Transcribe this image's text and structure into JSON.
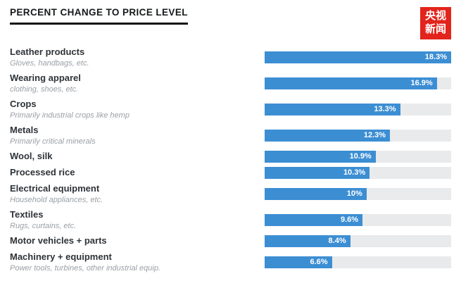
{
  "header": {
    "title": "PERCENT CHANGE TO PRICE LEVEL"
  },
  "logo": {
    "line1": "央视",
    "line2": "新闻",
    "bg_color": "#e2241c",
    "text_color": "#ffffff"
  },
  "chart_data": {
    "type": "bar",
    "orientation": "horizontal",
    "title": "PERCENT CHANGE TO PRICE LEVEL",
    "xlabel": "",
    "ylabel": "",
    "xlim": [
      0,
      18.3
    ],
    "grid": false,
    "legend": "none",
    "bar_color": "#3c8ed3",
    "track_color": "#e9eaeb",
    "categories": [
      "Leather products",
      "Wearing apparel",
      "Crops",
      "Metals",
      "Wool, silk",
      "Processed rice",
      "Electrical equipment",
      "Textiles",
      "Motor vehicles + parts",
      "Machinery + equipment"
    ],
    "values": [
      18.3,
      16.9,
      13.3,
      12.3,
      10.9,
      10.3,
      10,
      9.6,
      8.4,
      6.6
    ],
    "rows": [
      {
        "label": "Leather products",
        "subtitle": "Gloves, handbags, etc.",
        "value": 18.3,
        "value_label": "18.3%"
      },
      {
        "label": "Wearing apparel",
        "subtitle": "clothing, shoes, etc.",
        "value": 16.9,
        "value_label": "16.9%"
      },
      {
        "label": "Crops",
        "subtitle": "Primarily industrial crops like hemp",
        "value": 13.3,
        "value_label": "13.3%"
      },
      {
        "label": "Metals",
        "subtitle": "Primarily critical minerals",
        "value": 12.3,
        "value_label": "12.3%"
      },
      {
        "label": "Wool, silk",
        "subtitle": "",
        "value": 10.9,
        "value_label": "10.9%"
      },
      {
        "label": "Processed rice",
        "subtitle": "",
        "value": 10.3,
        "value_label": "10.3%"
      },
      {
        "label": "Electrical equipment",
        "subtitle": "Household appliances, etc.",
        "value": 10,
        "value_label": "10%"
      },
      {
        "label": "Textiles",
        "subtitle": "Rugs, curtains, etc.",
        "value": 9.6,
        "value_label": "9.6%"
      },
      {
        "label": "Motor vehicles + parts",
        "subtitle": "",
        "value": 8.4,
        "value_label": "8.4%"
      },
      {
        "label": "Machinery + equipment",
        "subtitle": "Power tools, turbines, other industrial equip.",
        "value": 6.6,
        "value_label": "6.6%"
      }
    ]
  }
}
